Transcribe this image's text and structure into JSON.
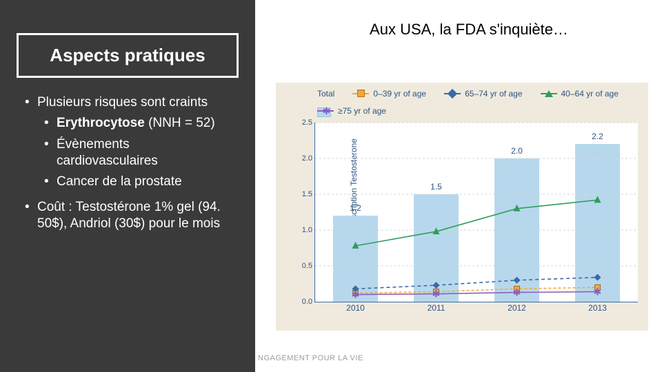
{
  "left": {
    "title": "Aspects pratiques",
    "b1": "Plusieurs risques sont craints",
    "b1a_label": "Erythrocytose",
    "b1a_detail": "(NNH = 52)",
    "b1b": "Évènements cardiovasculaires",
    "b1c": "Cancer de la prostate",
    "b2": "Coût : Testostérone 1% gel (94. 50$), Andriol (30$) pour le mois"
  },
  "right_title": "Aux USA, la FDA s'inquiète…",
  "footer": "NGAGEMENT POUR LA VIE",
  "chart": {
    "type": "line+bar",
    "background": "#f0eade",
    "plot_bg": "#ffffff",
    "axis_color": "#3a6aa8",
    "label_color": "#2b5580",
    "ylabel": "No. of Men on Prescription Testosterone\n(in millions)",
    "ymin": 0,
    "ymax": 2.5,
    "ytick_step": 0.5,
    "x_categories": [
      "2010",
      "2011",
      "2012",
      "2013"
    ],
    "legend": [
      {
        "key": "total",
        "label": "Total",
        "kind": "bar",
        "color": "#b7d8ec"
      },
      {
        "key": "s0",
        "label": "0–39 yr of age",
        "kind": "line",
        "color": "#f3a63c",
        "marker": "square"
      },
      {
        "key": "s65",
        "label": "65–74 yr of age",
        "kind": "line",
        "color": "#3a6aa8",
        "marker": "diamond"
      },
      {
        "key": "s40",
        "label": "40–64 yr of age",
        "kind": "line",
        "color": "#2f9d5c",
        "marker": "triangle"
      },
      {
        "key": "s75",
        "label": "≥75 yr of age",
        "kind": "line",
        "color": "#8a5fbf",
        "marker": "star"
      }
    ],
    "bars": {
      "color": "#b7d8ec",
      "width": 0.55,
      "values": [
        1.2,
        1.5,
        2.0,
        2.2
      ],
      "value_labels": [
        "1.2",
        "1.5",
        "2.0",
        "2.2"
      ]
    },
    "series": {
      "s0": {
        "color": "#f3a63c",
        "marker": "square",
        "dash": "4 3",
        "values": [
          0.12,
          0.14,
          0.18,
          0.2
        ]
      },
      "s40": {
        "color": "#2f9d5c",
        "marker": "triangle",
        "dash": "none",
        "values": [
          0.78,
          0.98,
          1.3,
          1.42
        ]
      },
      "s65": {
        "color": "#3a6aa8",
        "marker": "diamond",
        "dash": "5 4",
        "values": [
          0.18,
          0.23,
          0.3,
          0.34
        ]
      },
      "s75": {
        "color": "#8a5fbf",
        "marker": "star",
        "dash": "none",
        "values": [
          0.1,
          0.11,
          0.13,
          0.14
        ]
      }
    }
  }
}
